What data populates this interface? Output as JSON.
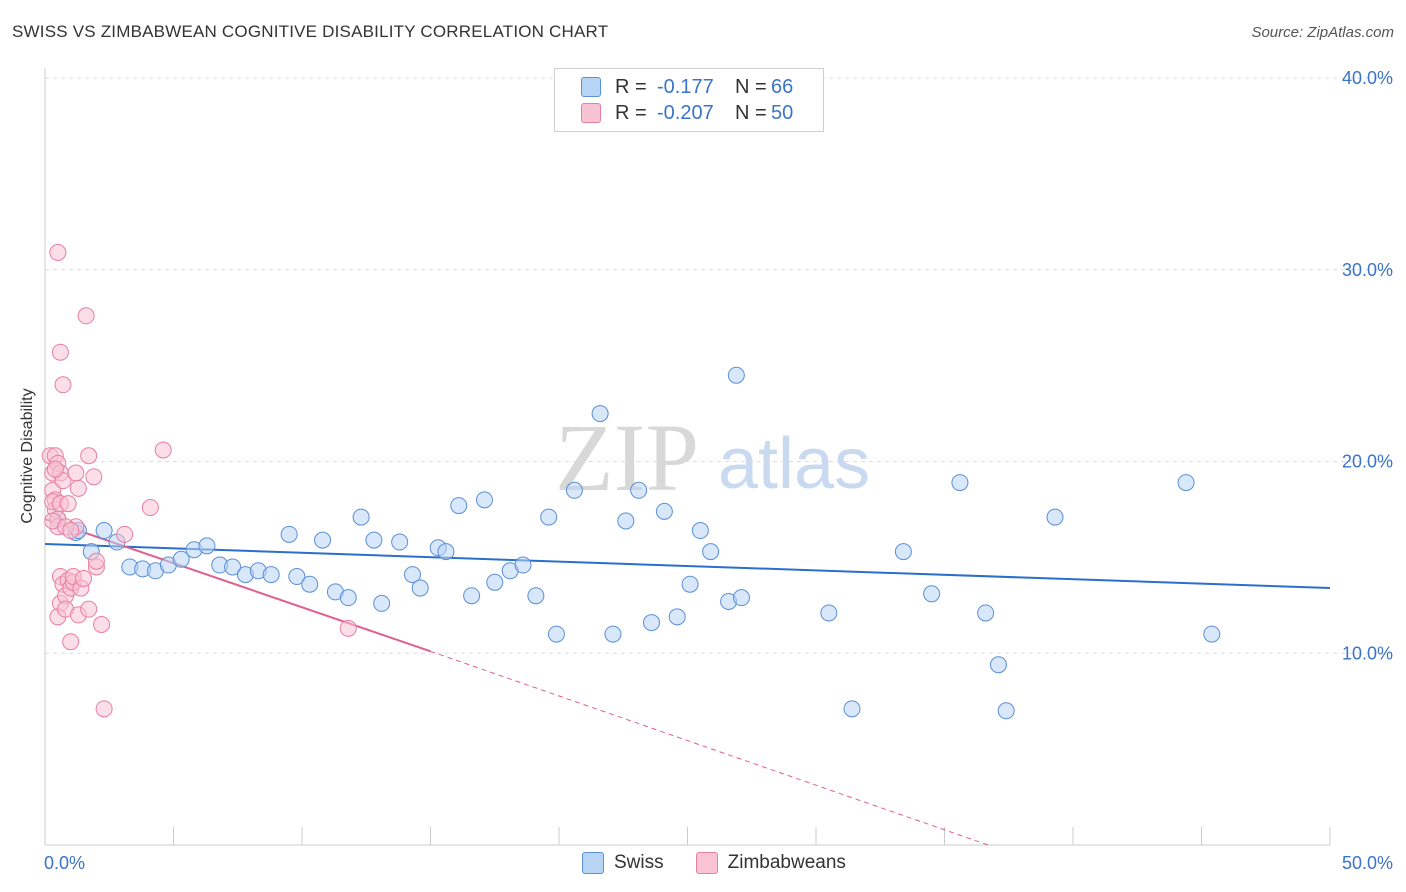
{
  "header": {
    "title": "SWISS VS ZIMBABWEAN COGNITIVE DISABILITY CORRELATION CHART",
    "source": "Source: ZipAtlas.com"
  },
  "legend": {
    "swiss": {
      "r_label": "R =",
      "r_value": "-0.177",
      "n_label": "N =",
      "n_value": "66"
    },
    "zimbabweans": {
      "r_label": "R =",
      "r_value": "-0.207",
      "n_label": "N =",
      "n_value": "50"
    }
  },
  "bottom_legend": {
    "swiss": "Swiss",
    "zimbabweans": "Zimbabweans"
  },
  "watermark": {
    "zip": "ZIP",
    "atlas": "atlas"
  },
  "colors": {
    "swiss_fill": "#b8d4f5",
    "swiss_stroke": "#5b8fd6",
    "swiss_line": "#2a6fcc",
    "zim_fill": "#f8c3d3",
    "zim_stroke": "#e87fa0",
    "zim_line": "#e0608a",
    "accent_text": "#3a74c8"
  },
  "chart_data": {
    "type": "scatter",
    "title": "SWISS VS ZIMBABWEAN COGNITIVE DISABILITY CORRELATION CHART",
    "xlabel": "",
    "ylabel": "Cognitive Disability",
    "xlim": [
      0,
      50
    ],
    "ylim": [
      0,
      40
    ],
    "x_tick_labels": [
      "0.0%",
      "50.0%"
    ],
    "y_ticks": [
      10,
      20,
      30,
      40
    ],
    "y_tick_labels": [
      "10.0%",
      "20.0%",
      "30.0%",
      "40.0%"
    ],
    "grid": true,
    "legend_position": "top-center",
    "series": [
      {
        "name": "Swiss",
        "points": [
          [
            0.5,
            17.0
          ],
          [
            1.2,
            16.3
          ],
          [
            1.8,
            15.3
          ],
          [
            2.3,
            16.4
          ],
          [
            2.8,
            15.8
          ],
          [
            3.3,
            14.5
          ],
          [
            3.8,
            14.4
          ],
          [
            4.3,
            14.3
          ],
          [
            4.8,
            14.6
          ],
          [
            5.3,
            14.9
          ],
          [
            5.8,
            15.4
          ],
          [
            6.3,
            15.6
          ],
          [
            6.8,
            14.6
          ],
          [
            7.3,
            14.5
          ],
          [
            7.8,
            14.1
          ],
          [
            8.3,
            14.3
          ],
          [
            8.8,
            14.1
          ],
          [
            9.5,
            16.2
          ],
          [
            9.8,
            14.0
          ],
          [
            10.3,
            13.6
          ],
          [
            10.8,
            15.9
          ],
          [
            11.3,
            13.2
          ],
          [
            11.8,
            12.9
          ],
          [
            12.3,
            17.1
          ],
          [
            12.8,
            15.9
          ],
          [
            13.1,
            12.6
          ],
          [
            13.8,
            15.8
          ],
          [
            14.3,
            14.1
          ],
          [
            14.6,
            13.4
          ],
          [
            15.3,
            15.5
          ],
          [
            15.6,
            15.3
          ],
          [
            16.1,
            17.7
          ],
          [
            16.6,
            13.0
          ],
          [
            17.1,
            18.0
          ],
          [
            17.5,
            13.7
          ],
          [
            18.1,
            14.3
          ],
          [
            18.6,
            14.6
          ],
          [
            19.1,
            13.0
          ],
          [
            19.6,
            17.1
          ],
          [
            19.9,
            11.0
          ],
          [
            20.6,
            18.5
          ],
          [
            21.6,
            22.5
          ],
          [
            22.1,
            11.0
          ],
          [
            22.6,
            16.9
          ],
          [
            23.1,
            18.5
          ],
          [
            23.6,
            11.6
          ],
          [
            24.1,
            17.4
          ],
          [
            24.6,
            11.9
          ],
          [
            25.1,
            13.6
          ],
          [
            25.5,
            16.4
          ],
          [
            25.9,
            15.3
          ],
          [
            26.6,
            12.7
          ],
          [
            26.9,
            24.5
          ],
          [
            27.1,
            12.9
          ],
          [
            30.5,
            12.1
          ],
          [
            31.4,
            7.1
          ],
          [
            33.4,
            15.3
          ],
          [
            34.5,
            13.1
          ],
          [
            35.6,
            18.9
          ],
          [
            36.6,
            12.1
          ],
          [
            37.1,
            9.4
          ],
          [
            37.4,
            7.0
          ],
          [
            39.3,
            17.1
          ],
          [
            44.4,
            18.9
          ],
          [
            45.4,
            11.0
          ],
          [
            1.3,
            16.4
          ]
        ],
        "trend": {
          "x": [
            0,
            50
          ],
          "y": [
            15.7,
            13.4
          ]
        }
      },
      {
        "name": "Zimbabweans",
        "points": [
          [
            0.2,
            20.3
          ],
          [
            0.3,
            19.4
          ],
          [
            0.3,
            18.5
          ],
          [
            0.4,
            18.0
          ],
          [
            0.4,
            17.5
          ],
          [
            0.5,
            17.0
          ],
          [
            0.5,
            16.6
          ],
          [
            0.3,
            17.9
          ],
          [
            0.4,
            20.3
          ],
          [
            0.5,
            19.9
          ],
          [
            0.6,
            19.4
          ],
          [
            0.7,
            19.0
          ],
          [
            0.6,
            17.8
          ],
          [
            0.5,
            30.9
          ],
          [
            0.6,
            25.7
          ],
          [
            0.7,
            24.0
          ],
          [
            0.6,
            12.6
          ],
          [
            0.5,
            11.9
          ],
          [
            0.6,
            14.0
          ],
          [
            0.7,
            13.6
          ],
          [
            0.8,
            13.0
          ],
          [
            0.8,
            12.3
          ],
          [
            0.9,
            13.8
          ],
          [
            1.0,
            13.4
          ],
          [
            1.0,
            10.6
          ],
          [
            1.1,
            13.7
          ],
          [
            1.1,
            14.0
          ],
          [
            1.2,
            19.4
          ],
          [
            1.3,
            18.6
          ],
          [
            1.2,
            16.6
          ],
          [
            1.4,
            13.4
          ],
          [
            1.5,
            13.9
          ],
          [
            1.3,
            12.0
          ],
          [
            1.6,
            27.6
          ],
          [
            1.7,
            20.3
          ],
          [
            1.7,
            12.3
          ],
          [
            1.9,
            19.2
          ],
          [
            2.0,
            14.5
          ],
          [
            2.0,
            14.8
          ],
          [
            2.2,
            11.5
          ],
          [
            2.3,
            7.1
          ],
          [
            3.1,
            16.2
          ],
          [
            4.1,
            17.6
          ],
          [
            4.6,
            20.6
          ],
          [
            11.8,
            11.3
          ],
          [
            0.3,
            16.9
          ],
          [
            0.8,
            16.6
          ],
          [
            1.0,
            16.4
          ],
          [
            0.9,
            17.8
          ],
          [
            0.4,
            19.6
          ]
        ],
        "trend": {
          "x": [
            0,
            15
          ],
          "y": [
            17.0,
            10.1
          ]
        },
        "trend_extrapolated": {
          "x": [
            15,
            36.7
          ],
          "y": [
            10.1,
            0.0
          ]
        }
      }
    ]
  }
}
